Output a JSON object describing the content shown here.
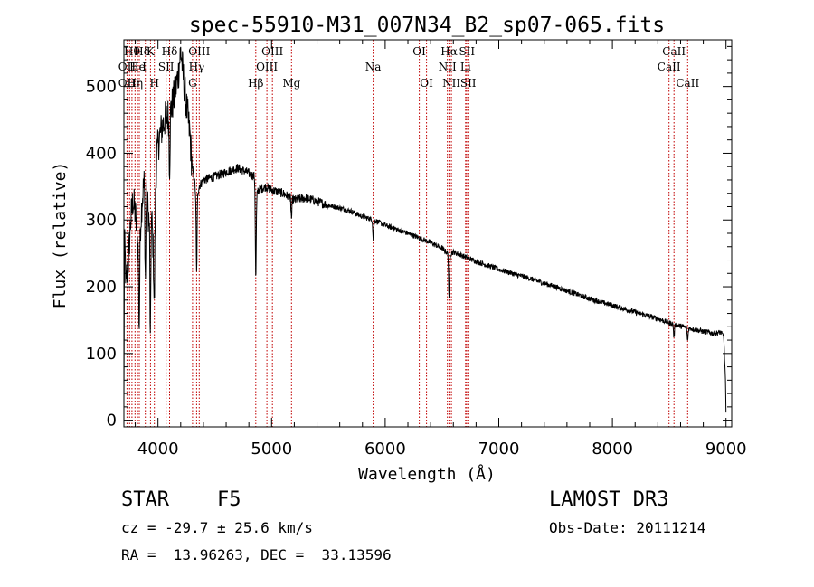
{
  "chart_data": {
    "type": "line",
    "title": "spec-55910-M31_007N34_B2_sp07-065.fits",
    "xlabel": "Wavelength (Å)",
    "ylabel": "Flux (relative)",
    "xlim": [
      3700,
      9050
    ],
    "ylim": [
      -10,
      570
    ],
    "xticks": [
      4000,
      5000,
      6000,
      7000,
      8000,
      9000
    ],
    "yticks": [
      0,
      100,
      200,
      300,
      400,
      500
    ],
    "spectrum_anchors": [
      [
        3700,
        20
      ],
      [
        3705,
        270
      ],
      [
        3720,
        200
      ],
      [
        3740,
        240
      ],
      [
        3760,
        300
      ],
      [
        3780,
        330
      ],
      [
        3800,
        310
      ],
      [
        3830,
        250
      ],
      [
        3860,
        330
      ],
      [
        3880,
        360
      ],
      [
        3900,
        340
      ],
      [
        3920,
        300
      ],
      [
        3940,
        320
      ],
      [
        3960,
        250
      ],
      [
        3970,
        300
      ],
      [
        3990,
        400
      ],
      [
        4020,
        430
      ],
      [
        4060,
        450
      ],
      [
        4100,
        460
      ],
      [
        4120,
        470
      ],
      [
        4150,
        490
      ],
      [
        4180,
        520
      ],
      [
        4200,
        555
      ],
      [
        4220,
        520
      ],
      [
        4250,
        470
      ],
      [
        4280,
        430
      ],
      [
        4300,
        380
      ],
      [
        4320,
        360
      ],
      [
        4340,
        330
      ],
      [
        4360,
        350
      ],
      [
        4400,
        360
      ],
      [
        4500,
        365
      ],
      [
        4600,
        372
      ],
      [
        4700,
        378
      ],
      [
        4780,
        372
      ],
      [
        4850,
        365
      ],
      [
        4860,
        330
      ],
      [
        4880,
        345
      ],
      [
        4950,
        350
      ],
      [
        5000,
        345
      ],
      [
        5100,
        340
      ],
      [
        5200,
        330
      ],
      [
        5300,
        333
      ],
      [
        5400,
        328
      ],
      [
        5500,
        322
      ],
      [
        5600,
        318
      ],
      [
        5700,
        313
      ],
      [
        5800,
        305
      ],
      [
        5900,
        300
      ],
      [
        6000,
        292
      ],
      [
        6100,
        286
      ],
      [
        6200,
        280
      ],
      [
        6300,
        273
      ],
      [
        6400,
        266
      ],
      [
        6500,
        258
      ],
      [
        6560,
        248
      ],
      [
        6600,
        252
      ],
      [
        6700,
        245
      ],
      [
        6800,
        238
      ],
      [
        6900,
        232
      ],
      [
        7000,
        226
      ],
      [
        7100,
        221
      ],
      [
        7200,
        216
      ],
      [
        7300,
        211
      ],
      [
        7400,
        205
      ],
      [
        7500,
        200
      ],
      [
        7600,
        194
      ],
      [
        7700,
        188
      ],
      [
        7800,
        182
      ],
      [
        7900,
        177
      ],
      [
        8000,
        172
      ],
      [
        8100,
        167
      ],
      [
        8200,
        162
      ],
      [
        8300,
        157
      ],
      [
        8400,
        152
      ],
      [
        8500,
        146
      ],
      [
        8600,
        141
      ],
      [
        8700,
        137
      ],
      [
        8800,
        133
      ],
      [
        8900,
        130
      ],
      [
        8950,
        132
      ],
      [
        8980,
        126
      ],
      [
        8995,
        60
      ],
      [
        9000,
        10
      ]
    ],
    "absorption_dips": [
      [
        3835,
        120
      ],
      [
        3889,
        140
      ],
      [
        3933,
        200
      ],
      [
        3968,
        120
      ],
      [
        4102,
        80
      ],
      [
        4340,
        110
      ],
      [
        4861,
        120
      ],
      [
        5175,
        30
      ],
      [
        5895,
        30
      ],
      [
        6563,
        70
      ],
      [
        8542,
        20
      ],
      [
        8662,
        20
      ]
    ],
    "emission_lines": [
      {
        "wl": 3727,
        "labels": [
          "OII"
        ]
      },
      {
        "wl": 3750,
        "labels": [
          "OII"
        ]
      },
      {
        "wl": 3771,
        "labels": [
          "Hθ"
        ]
      },
      {
        "wl": 3798,
        "labels": [
          "Hη"
        ]
      },
      {
        "wl": 3820,
        "labels": [
          "HeI"
        ]
      },
      {
        "wl": 3835,
        "labels": [
          "Hθ"
        ]
      },
      {
        "wl": 3889,
        "labels": [
          "Hη"
        ]
      },
      {
        "wl": 3934,
        "labels": [
          "K"
        ]
      },
      {
        "wl": 3968,
        "labels": [
          "H"
        ]
      },
      {
        "wl": 4072,
        "labels": [
          "SII"
        ]
      },
      {
        "wl": 4102,
        "labels": [
          "Hδ"
        ]
      },
      {
        "wl": 4304,
        "labels": [
          "G"
        ]
      },
      {
        "wl": 4340,
        "labels": [
          "Hγ"
        ]
      },
      {
        "wl": 4363,
        "labels": [
          "OIII"
        ]
      },
      {
        "wl": 4861,
        "labels": [
          "Hβ"
        ]
      },
      {
        "wl": 4959,
        "labels": [
          "OIII"
        ]
      },
      {
        "wl": 5007,
        "labels": [
          "OIII"
        ]
      },
      {
        "wl": 5175,
        "labels": [
          "Mg"
        ]
      },
      {
        "wl": 5894,
        "labels": [
          "Na"
        ]
      },
      {
        "wl": 6300,
        "labels": [
          "OI"
        ]
      },
      {
        "wl": 6364,
        "labels": [
          "OI"
        ]
      },
      {
        "wl": 6548,
        "labels": [
          "NII"
        ]
      },
      {
        "wl": 6563,
        "labels": [
          "Hα"
        ]
      },
      {
        "wl": 6583,
        "labels": [
          "NII"
        ]
      },
      {
        "wl": 6708,
        "labels": [
          "Li"
        ]
      },
      {
        "wl": 6717,
        "labels": [
          "SII"
        ]
      },
      {
        "wl": 6731,
        "labels": [
          "SII"
        ]
      },
      {
        "wl": 8498,
        "labels": [
          "CaII"
        ]
      },
      {
        "wl": 8542,
        "labels": [
          "CaII"
        ]
      },
      {
        "wl": 8662,
        "labels": [
          "CaII"
        ]
      }
    ],
    "top_labels": [
      {
        "text": "Hθ",
        "wl": 3771,
        "row": 0
      },
      {
        "text": "Hδ",
        "wl": 3860,
        "row": 0
      },
      {
        "text": "K",
        "wl": 3934,
        "row": 0
      },
      {
        "text": "Hδ",
        "wl": 4102,
        "row": 0
      },
      {
        "text": "OIII",
        "wl": 4363,
        "row": 0
      },
      {
        "text": "OIII",
        "wl": 5007,
        "row": 0
      },
      {
        "text": "OI",
        "wl": 6300,
        "row": 0
      },
      {
        "text": "Hα",
        "wl": 6563,
        "row": 0
      },
      {
        "text": "SII",
        "wl": 6720,
        "row": 0
      },
      {
        "text": "CaII",
        "wl": 8542,
        "row": 0
      },
      {
        "text": "OII",
        "wl": 3727,
        "row": 1
      },
      {
        "text": "He",
        "wl": 3819,
        "row": 1
      },
      {
        "text": "I",
        "wl": 3880,
        "row": 1
      },
      {
        "text": "SII",
        "wl": 4072,
        "row": 1
      },
      {
        "text": "Hγ",
        "wl": 4340,
        "row": 1
      },
      {
        "text": "OIII",
        "wl": 4959,
        "row": 1
      },
      {
        "text": "Na",
        "wl": 5894,
        "row": 1
      },
      {
        "text": "NII",
        "wl": 6548,
        "row": 1
      },
      {
        "text": "Li",
        "wl": 6708,
        "row": 1
      },
      {
        "text": "CaII",
        "wl": 8498,
        "row": 1
      },
      {
        "text": "OII",
        "wl": 3727,
        "row": 2
      },
      {
        "text": "Hη",
        "wl": 3798,
        "row": 2
      },
      {
        "text": "H",
        "wl": 3968,
        "row": 2
      },
      {
        "text": "G",
        "wl": 4304,
        "row": 2
      },
      {
        "text": "Hβ",
        "wl": 4861,
        "row": 2
      },
      {
        "text": "Mg",
        "wl": 5175,
        "row": 2
      },
      {
        "text": "OI",
        "wl": 6364,
        "row": 2
      },
      {
        "text": "NII",
        "wl": 6583,
        "row": 2
      },
      {
        "text": "SII",
        "wl": 6731,
        "row": 2
      },
      {
        "text": "CaII",
        "wl": 8662,
        "row": 2
      }
    ]
  },
  "info": {
    "class_label": "STAR",
    "subclass": "F5",
    "survey": "LAMOST DR3",
    "cz": "cz = -29.7 ± 25.6 km/s",
    "obs_date": "Obs-Date: 20111214",
    "radec": "RA =  13.96263, DEC =  33.13596"
  },
  "colors": {
    "axis": "#000000",
    "spectrum": "#000000",
    "line_marker": "#c00000"
  }
}
